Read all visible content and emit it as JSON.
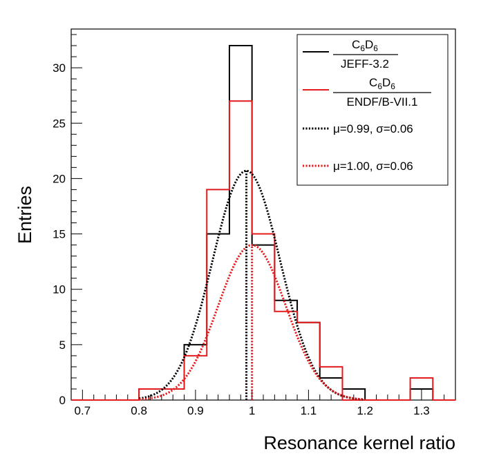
{
  "chart_data": {
    "type": "bar",
    "title": "",
    "xlabel": "Resonance kernel ratio",
    "ylabel": "Entries",
    "xlim": [
      0.68,
      1.36
    ],
    "ylim": [
      0,
      33.5
    ],
    "xticks": [
      0.7,
      0.8,
      0.9,
      1.0,
      1.1,
      1.2,
      1.3
    ],
    "xtick_labels": [
      "0.7",
      "0.8",
      "0.9",
      "1",
      "1.1",
      "1.2",
      "1.3"
    ],
    "yticks": [
      0,
      5,
      10,
      15,
      20,
      25,
      30
    ],
    "ytick_labels": [
      "0",
      "5",
      "10",
      "15",
      "20",
      "25",
      "30"
    ],
    "bin_edges": [
      0.68,
      0.7,
      0.72,
      0.74,
      0.76,
      0.78,
      0.8,
      0.82,
      0.84,
      0.86,
      0.88,
      0.9,
      0.92,
      0.94,
      0.96,
      0.98,
      1.0,
      1.02,
      1.04,
      1.06,
      1.08,
      1.1,
      1.12,
      1.14,
      1.16,
      1.18,
      1.2,
      1.22,
      1.24,
      1.26,
      1.28,
      1.3,
      1.32,
      1.34,
      1.36
    ],
    "series": [
      {
        "name": "JEFF-3.2",
        "color": "#000000",
        "values": [
          0,
          0,
          0,
          0,
          0,
          0,
          1,
          1,
          1,
          1,
          5,
          5,
          15,
          15,
          32,
          32,
          14,
          14,
          9,
          9,
          7,
          7,
          2,
          2,
          1,
          1,
          0,
          0,
          0,
          0,
          1,
          1,
          0,
          0
        ]
      },
      {
        "name": "ENDF/B-VII.1",
        "color": "#e41a1c",
        "values": [
          0,
          0,
          0,
          0,
          0,
          0,
          1,
          1,
          1,
          1,
          4,
          4,
          19,
          19,
          27,
          27,
          15,
          15,
          8,
          8,
          7,
          7,
          3,
          3,
          0,
          0,
          0,
          0,
          0,
          0,
          2,
          2,
          0,
          0
        ]
      }
    ],
    "fits": [
      {
        "name": "JEFF-3.2 fit",
        "color": "#000000",
        "mu": 0.99,
        "sigma": 0.06,
        "amplitude": 20.7
      },
      {
        "name": "ENDF/B-VII.1 fit",
        "color": "#e41a1c",
        "mu": 1.0,
        "sigma": 0.06,
        "amplitude": 14.0
      }
    ],
    "mean_lines": [
      {
        "color": "#000000",
        "x": 0.99
      },
      {
        "color": "#e41a1c",
        "x": 1.0
      }
    ],
    "legend": {
      "position": "top-right",
      "entries": [
        {
          "style": "solid",
          "color": "#000000",
          "numerator_main": "C",
          "numerator_sub1": "6",
          "numerator_mid": "D",
          "numerator_sub2": "6",
          "denominator": "JEFF-3.2"
        },
        {
          "style": "solid",
          "color": "#e41a1c",
          "numerator_main": "C",
          "numerator_sub1": "6",
          "numerator_mid": "D",
          "numerator_sub2": "6",
          "denominator": "ENDF/B-VII.1"
        },
        {
          "style": "dotted",
          "color": "#000000",
          "label": "μ=0.99, σ=0.06"
        },
        {
          "style": "dotted",
          "color": "#e41a1c",
          "label": "μ=1.00, σ=0.06"
        }
      ]
    }
  }
}
